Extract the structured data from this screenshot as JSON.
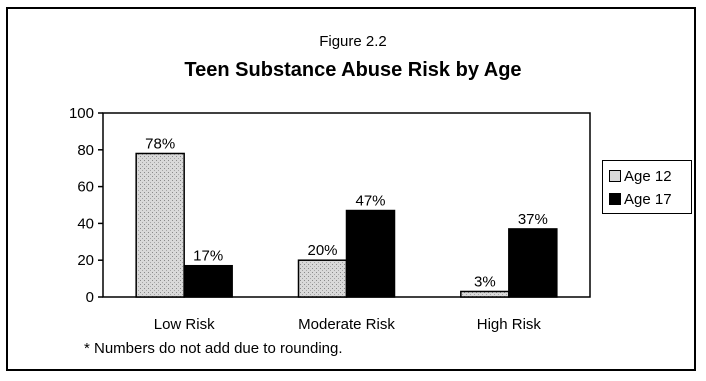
{
  "figure_label": "Figure 2.2",
  "footnote": "* Numbers do not add due to rounding.",
  "colors": {
    "age12": "#d9d9d9",
    "age17": "#000000"
  },
  "chart_data": {
    "type": "bar",
    "title": "Teen Substance Abuse Risk by Age",
    "categories": [
      "Low Risk",
      "Moderate Risk",
      "High Risk"
    ],
    "series": [
      {
        "name": "Age 12",
        "values": [
          78,
          20,
          3
        ],
        "labels": [
          "78%",
          "20%",
          "3%"
        ]
      },
      {
        "name": "Age 17",
        "values": [
          17,
          47,
          37
        ],
        "labels": [
          "17%",
          "47%",
          "37%"
        ]
      }
    ],
    "yticks": [
      "0",
      "20",
      "40",
      "60",
      "80",
      "100"
    ],
    "ylim": [
      0,
      100
    ],
    "grid": false,
    "legend": "right"
  }
}
